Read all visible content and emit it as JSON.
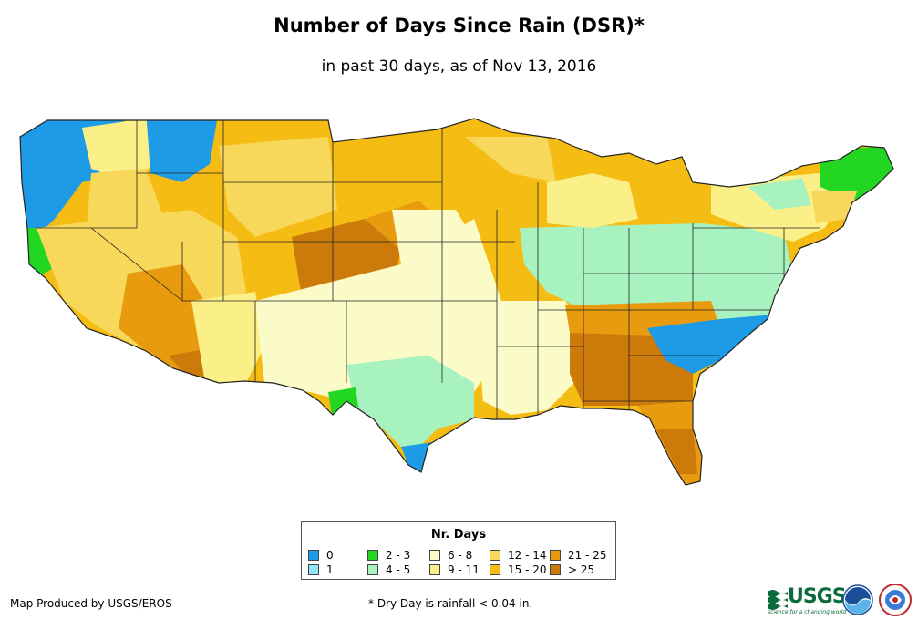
{
  "title": "Number of Days Since Rain (DSR)*",
  "subtitle": "in past 30 days, as of Nov 13, 2016",
  "legend": {
    "title": "Nr. Days",
    "items": [
      {
        "label": "0",
        "color": "#1e9be6"
      },
      {
        "label": "1",
        "color": "#8ee6f5"
      },
      {
        "label": "2 - 3",
        "color": "#22d622"
      },
      {
        "label": "4 - 5",
        "color": "#a8f2c0"
      },
      {
        "label": "6 - 8",
        "color": "#fbfbc8"
      },
      {
        "label": "9 - 11",
        "color": "#fbf087"
      },
      {
        "label": "12 - 14",
        "color": "#f8d85a"
      },
      {
        "label": "15 - 20",
        "color": "#f5bd14"
      },
      {
        "label": "21 - 25",
        "color": "#e99b10"
      },
      {
        "label": "> 25",
        "color": "#cc7a0a"
      }
    ]
  },
  "credit": "Map Produced by USGS/EROS",
  "footnote": "* Dry Day is rainfall < 0.04 in.",
  "logos": {
    "usgs": "USGS",
    "usgs_tagline": "science for a changing world",
    "icons": [
      "noaa-logo-icon",
      "national-weather-service-logo-icon"
    ]
  }
}
